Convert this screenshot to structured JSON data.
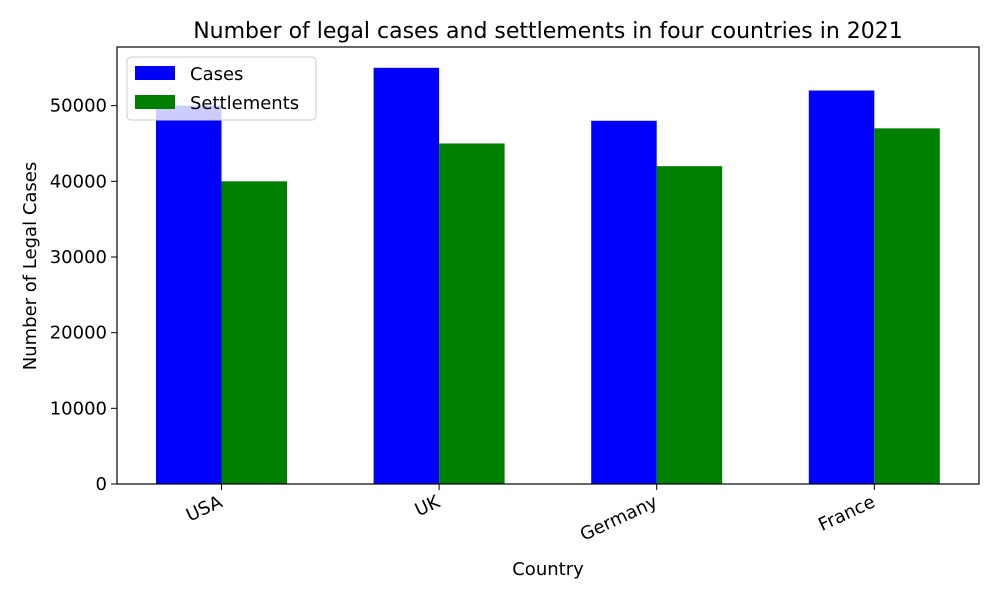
{
  "chart_data": {
    "type": "bar",
    "title": "Number of legal cases and settlements in four countries in 2021",
    "xlabel": "Country",
    "ylabel": "Number of Legal Cases",
    "categories": [
      "USA",
      "UK",
      "Germany",
      "France"
    ],
    "series": [
      {
        "name": "Cases",
        "color": "#0000ff",
        "values": [
          50000,
          55000,
          48000,
          52000
        ]
      },
      {
        "name": "Settlements",
        "color": "#008000",
        "values": [
          40000,
          45000,
          42000,
          47000
        ]
      }
    ],
    "ylim": [
      0,
      57750
    ],
    "yticks": [
      0,
      10000,
      20000,
      30000,
      40000,
      50000
    ],
    "ytick_labels": [
      "0",
      "10000",
      "20000",
      "30000",
      "40000",
      "50000"
    ],
    "grid": false,
    "legend_position": "top-left"
  }
}
